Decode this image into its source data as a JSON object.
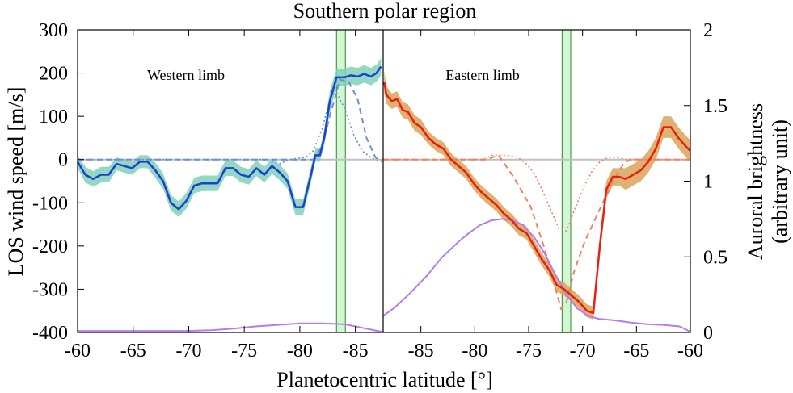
{
  "chart_data": {
    "type": "line",
    "title": "Southern polar region",
    "xlabel": "Planetocentric latitude [°]",
    "ylabel": "LOS wind speed [m/s]",
    "y2label_line1": "Auroral brightness",
    "y2label_line2": "(arbitrary unit)",
    "ylim": [
      -400,
      300
    ],
    "y2lim": [
      0,
      2
    ],
    "yticks": [
      "300",
      "200",
      "100",
      "0",
      "-100",
      "-200",
      "-300",
      "-400"
    ],
    "y2ticks": [
      "2",
      "1.5",
      "1",
      "0.5",
      "0"
    ],
    "annotations": [
      "Western limb",
      "Eastern limb"
    ],
    "colors": {
      "west": "#1f3fcf",
      "west_band": "#7fd1b9",
      "west_model": "#6a8fd8",
      "east": "#e8200e",
      "east_band": "#d9a55a",
      "east_model": "#f08060",
      "aurora": "#b57cf0",
      "oval_highlight": "#b9f0b9",
      "zero_line": "#c0c0c0"
    },
    "panels": [
      {
        "name": "Western limb",
        "xticks": [
          "-60",
          "-65",
          "-70",
          "-75",
          "-80",
          "-85"
        ],
        "xlim": [
          -60,
          -87.5
        ],
        "oval_band": [
          -83.3,
          -84.1
        ],
        "wind": {
          "x": [
            -60,
            -60.7,
            -61.4,
            -62.1,
            -62.8,
            -63.5,
            -64.2,
            -64.9,
            -65.6,
            -66.3,
            -67,
            -67.7,
            -68.4,
            -69.1,
            -69.8,
            -70.5,
            -71.2,
            -71.9,
            -72.6,
            -73.3,
            -74,
            -74.7,
            -75.4,
            -76.1,
            -76.8,
            -77.5,
            -78.2,
            -78.9,
            -79.6,
            -80.3,
            -81,
            -81.4,
            -81.8,
            -82.2,
            -82.7,
            -83.3,
            -84,
            -84.6,
            -85.2,
            -85.8,
            -86.4,
            -86.9,
            -87.3
          ],
          "y": [
            -5,
            -35,
            -45,
            -35,
            -35,
            -10,
            -15,
            -20,
            -5,
            -5,
            -25,
            -50,
            -100,
            -115,
            -95,
            -60,
            -55,
            -55,
            -55,
            -20,
            -20,
            -35,
            -40,
            -20,
            -35,
            -15,
            -30,
            -50,
            -110,
            -110,
            -35,
            10,
            10,
            50,
            135,
            190,
            190,
            195,
            192,
            198,
            192,
            200,
            215
          ],
          "err": [
            15,
            18,
            18,
            18,
            18,
            15,
            15,
            15,
            15,
            15,
            18,
            18,
            18,
            18,
            18,
            18,
            18,
            18,
            18,
            18,
            18,
            18,
            18,
            18,
            18,
            18,
            18,
            18,
            18,
            18,
            18,
            15,
            15,
            18,
            25,
            20,
            20,
            20,
            20,
            20,
            20,
            20,
            20
          ]
        },
        "model_dashed": {
          "x": [
            -60,
            -81.2,
            -82,
            -82.8,
            -83.6,
            -84.4,
            -85.2,
            -86,
            -86.8,
            -87.4
          ],
          "y": [
            0,
            0,
            30,
            110,
            185,
            180,
            140,
            50,
            5,
            -5
          ]
        },
        "model_dotted": {
          "x": [
            -60,
            -76.5,
            -77.5,
            -78.2,
            -79,
            -80.5,
            -81.2,
            -82,
            -82.6,
            -83.2,
            -84,
            -84.8,
            -85.6,
            -86.4,
            -87.2
          ],
          "y": [
            0,
            0,
            -5,
            -10,
            0,
            5,
            20,
            70,
            130,
            160,
            120,
            60,
            20,
            5,
            -5
          ]
        },
        "aurora": {
          "x": [
            -60,
            -62,
            -64,
            -66,
            -68,
            -70,
            -72,
            -74,
            -76,
            -78,
            -80,
            -82,
            -84,
            -85,
            -86,
            -87,
            -87.5
          ],
          "y": [
            0.01,
            0.01,
            0.01,
            0.01,
            0.01,
            0.01,
            0.015,
            0.025,
            0.04,
            0.05,
            0.06,
            0.06,
            0.055,
            0.04,
            0.025,
            0.01,
            0.005
          ]
        }
      },
      {
        "name": "Eastern limb",
        "xticks": [
          "-85",
          "-80",
          "-75",
          "-70",
          "-65",
          "-60"
        ],
        "xlim": [
          -88.5,
          -60
        ],
        "oval_band": [
          -71.9,
          -71.1
        ],
        "wind": {
          "x": [
            -88.4,
            -88.2,
            -87.7,
            -87.2,
            -86.7,
            -86.2,
            -85.6,
            -85,
            -84.3,
            -83.6,
            -82.9,
            -82.2,
            -81.5,
            -80.8,
            -80.1,
            -79.4,
            -78.7,
            -78,
            -77.3,
            -76.6,
            -75.9,
            -75.2,
            -74.5,
            -73.8,
            -73.1,
            -72.4,
            -71.7,
            -71,
            -70.3,
            -69.6,
            -69,
            -68.4,
            -67.8,
            -67.2,
            -66.6,
            -66,
            -65.3,
            -64.6,
            -63.9,
            -63.2,
            -62.5,
            -61.8,
            -61.1,
            -60.4,
            -60
          ],
          "y": [
            180,
            150,
            135,
            140,
            115,
            110,
            85,
            75,
            50,
            35,
            25,
            0,
            -15,
            -30,
            -55,
            -75,
            -90,
            -105,
            -125,
            -140,
            -160,
            -170,
            -200,
            -230,
            -255,
            -290,
            -300,
            -315,
            -330,
            -350,
            -355,
            -200,
            -70,
            -40,
            -40,
            -45,
            -35,
            -25,
            -5,
            25,
            75,
            75,
            50,
            30,
            20
          ],
          "err": [
            25,
            20,
            18,
            18,
            18,
            18,
            18,
            18,
            15,
            15,
            15,
            15,
            15,
            15,
            15,
            15,
            15,
            15,
            15,
            15,
            15,
            15,
            15,
            15,
            15,
            15,
            15,
            15,
            15,
            15,
            15,
            20,
            20,
            20,
            20,
            25,
            25,
            25,
            25,
            25,
            25,
            25,
            25,
            25,
            25
          ]
        },
        "model_dashed": {
          "x": [
            -88.5,
            -79.8,
            -79,
            -77.8,
            -76.4,
            -74.8,
            -73.6,
            -72.6,
            -72,
            -71.5,
            -70.8,
            -69.8,
            -68.5,
            -67.2,
            -66.2,
            -65.6,
            -60
          ],
          "y": [
            0,
            0,
            0,
            10,
            -40,
            -110,
            -200,
            -290,
            -345,
            -330,
            -260,
            -190,
            -120,
            -50,
            -10,
            0,
            0
          ]
        },
        "model_dotted": {
          "x": [
            -88.5,
            -79.2,
            -78.4,
            -77.2,
            -76,
            -75.2,
            -74.4,
            -73.4,
            -72.2,
            -71.5,
            -70.8,
            -70,
            -69.2,
            -68.4,
            -67.6,
            -66.8,
            -66,
            -60
          ],
          "y": [
            0,
            0,
            10,
            10,
            5,
            -10,
            -35,
            -90,
            -160,
            -165,
            -120,
            -70,
            -30,
            -5,
            5,
            5,
            0,
            0
          ]
        },
        "aurora": {
          "x": [
            -88.5,
            -87.5,
            -86,
            -84.5,
            -83,
            -81.5,
            -80.5,
            -79.5,
            -78.5,
            -77.5,
            -76.5,
            -75.5,
            -74.5,
            -73.5,
            -72.5,
            -71.5,
            -70.5,
            -69.5,
            -68.5,
            -67,
            -65.5,
            -64,
            -62.5,
            -61,
            -60
          ],
          "y": [
            0.11,
            0.16,
            0.26,
            0.37,
            0.5,
            0.6,
            0.66,
            0.71,
            0.74,
            0.75,
            0.74,
            0.71,
            0.63,
            0.52,
            0.38,
            0.25,
            0.16,
            0.11,
            0.09,
            0.08,
            0.065,
            0.055,
            0.05,
            0.04,
            0.005
          ]
        }
      }
    ]
  }
}
